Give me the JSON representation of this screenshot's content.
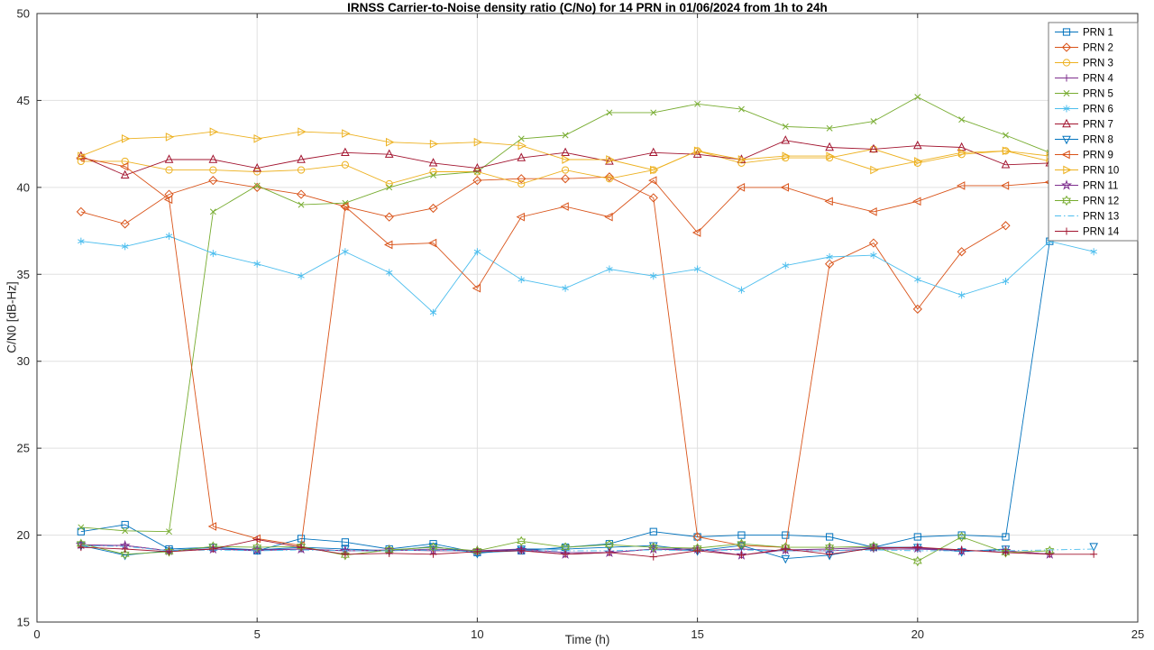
{
  "chart_data": {
    "type": "line",
    "title": "IRNSS Carrier-to-Noise density ratio (C/No) for 14 PRN in 01/06/2024 from 1h to 24h",
    "xlabel": "Time (h)",
    "ylabel": "C/N0 [dB-Hz]",
    "xlim": [
      0,
      25
    ],
    "ylim": [
      15,
      50
    ],
    "xticks": [
      0,
      5,
      10,
      15,
      20,
      25
    ],
    "yticks": [
      15,
      20,
      25,
      30,
      35,
      40,
      45,
      50
    ],
    "grid": true,
    "legend_position": "top-right",
    "grid_color": "#e0e0e0",
    "axis_color": "#333333",
    "tick_label_color": "#262626",
    "x": [
      1,
      2,
      3,
      4,
      5,
      6,
      7,
      8,
      9,
      10,
      11,
      12,
      13,
      14,
      15,
      16,
      17,
      18,
      19,
      20,
      21,
      22,
      23,
      24
    ],
    "series": [
      {
        "name": "PRN 1",
        "color": "#0072BD",
        "marker": "square",
        "linestyle": "solid",
        "values": [
          20.2,
          20.6,
          19.2,
          19.3,
          19.1,
          19.8,
          19.6,
          19.2,
          19.5,
          19.0,
          19.1,
          19.3,
          19.5,
          20.2,
          19.9,
          20.0,
          20.0,
          19.9,
          19.3,
          19.9,
          20.0,
          19.9,
          36.9,
          null
        ]
      },
      {
        "name": "PRN 2",
        "color": "#D95319",
        "marker": "diamond",
        "linestyle": "solid",
        "values": [
          38.6,
          37.9,
          39.6,
          40.4,
          40.0,
          39.6,
          38.9,
          38.3,
          38.8,
          40.4,
          40.5,
          40.5,
          40.6,
          39.4,
          19.9,
          19.4,
          19.3,
          35.6,
          36.8,
          33.0,
          36.3,
          37.8,
          null,
          null
        ]
      },
      {
        "name": "PRN 3",
        "color": "#EDB120",
        "marker": "circle",
        "linestyle": "solid",
        "values": [
          41.5,
          41.5,
          41.0,
          41.0,
          40.9,
          41.0,
          41.3,
          40.2,
          40.9,
          40.9,
          40.2,
          41.0,
          40.5,
          41.0,
          42.1,
          41.4,
          41.7,
          41.7,
          42.2,
          41.4,
          41.9,
          42.1,
          41.5,
          41.8
        ]
      },
      {
        "name": "PRN 4",
        "color": "#7E2F8E",
        "marker": "plus",
        "linestyle": "solid",
        "values": [
          19.4,
          19.4,
          19.1,
          19.2,
          19.1,
          19.2,
          19.1,
          19.1,
          19.2,
          19.1,
          19.2,
          19.0,
          19.0,
          19.2,
          19.1,
          19.2,
          19.1,
          19.1,
          19.2,
          19.2,
          19.1,
          19.1,
          18.9,
          null
        ]
      },
      {
        "name": "PRN 5",
        "color": "#77AC30",
        "marker": "x",
        "linestyle": "solid",
        "values": [
          20.45,
          20.25,
          20.2,
          38.6,
          40.1,
          39.0,
          39.1,
          40.0,
          40.7,
          40.9,
          42.8,
          43.0,
          44.3,
          44.3,
          44.8,
          44.5,
          43.5,
          43.4,
          43.8,
          45.2,
          43.9,
          43.0,
          42.0,
          41.9
        ]
      },
      {
        "name": "PRN 6",
        "color": "#4DBEEE",
        "marker": "asterisk",
        "linestyle": "solid",
        "values": [
          36.9,
          36.6,
          37.2,
          36.2,
          35.6,
          34.9,
          36.3,
          35.1,
          32.8,
          36.3,
          34.7,
          34.2,
          35.3,
          34.9,
          35.3,
          34.1,
          35.5,
          36.0,
          36.1,
          34.7,
          33.8,
          34.6,
          36.9,
          36.3
        ]
      },
      {
        "name": "PRN 7",
        "color": "#A2142F",
        "marker": "triangle-up",
        "linestyle": "solid",
        "values": [
          41.8,
          40.7,
          41.6,
          41.6,
          41.1,
          41.6,
          42.0,
          41.9,
          41.4,
          41.1,
          41.7,
          42.0,
          41.5,
          42.0,
          41.9,
          41.6,
          42.7,
          42.3,
          42.2,
          42.4,
          42.3,
          41.3,
          41.4,
          null
        ]
      },
      {
        "name": "PRN 8",
        "color": "#0072BD",
        "marker": "triangle-down",
        "linestyle": "solid",
        "values": [
          19.4,
          18.85,
          19.1,
          19.3,
          19.15,
          19.3,
          19.2,
          19.1,
          19.35,
          18.95,
          19.2,
          19.2,
          19.3,
          19.4,
          19.1,
          19.4,
          18.65,
          18.85,
          19.3,
          19.3,
          19.05,
          19.2,
          null,
          19.35
        ]
      },
      {
        "name": "PRN 9",
        "color": "#D95319",
        "marker": "triangle-left",
        "linestyle": "solid",
        "values": [
          41.7,
          41.2,
          39.3,
          20.5,
          19.8,
          19.4,
          38.9,
          36.7,
          36.8,
          34.2,
          38.3,
          38.9,
          38.3,
          40.4,
          37.4,
          40.0,
          40.0,
          39.2,
          38.6,
          39.2,
          40.1,
          40.1,
          40.3,
          null
        ]
      },
      {
        "name": "PRN 10",
        "color": "#EDB120",
        "marker": "triangle-right",
        "linestyle": "solid",
        "values": [
          41.8,
          42.8,
          42.9,
          43.2,
          42.8,
          43.2,
          43.1,
          42.6,
          42.5,
          42.6,
          42.4,
          41.6,
          41.6,
          41.0,
          42.1,
          41.6,
          41.8,
          41.8,
          41.0,
          41.5,
          42.0,
          42.1,
          41.8,
          41.8
        ]
      },
      {
        "name": "PRN 11",
        "color": "#7E2F8E",
        "marker": "pentagram",
        "linestyle": "solid",
        "values": [
          19.45,
          19.4,
          19.1,
          19.2,
          19.15,
          19.2,
          19.1,
          19.15,
          19.1,
          19.1,
          19.15,
          18.9,
          19.0,
          19.2,
          19.2,
          18.85,
          19.15,
          19.2,
          19.3,
          19.25,
          19.1,
          19.1,
          18.9,
          null
        ]
      },
      {
        "name": "PRN 12",
        "color": "#77AC30",
        "marker": "hexagram",
        "linestyle": "solid",
        "values": [
          19.5,
          18.9,
          19.05,
          19.35,
          19.3,
          19.35,
          18.85,
          19.15,
          19.3,
          19.1,
          19.65,
          19.3,
          19.45,
          19.3,
          19.25,
          19.5,
          19.3,
          19.3,
          19.35,
          18.5,
          19.9,
          19.0,
          19.1,
          null
        ]
      },
      {
        "name": "PRN 13",
        "color": "#4DBEEE",
        "marker": "none",
        "linestyle": "dashdot",
        "values": [
          19.4,
          19.35,
          19.1,
          19.15,
          19.1,
          19.15,
          19.1,
          19.1,
          19.15,
          19.05,
          19.1,
          19.1,
          19.1,
          19.15,
          19.1,
          19.15,
          19.1,
          19.1,
          19.15,
          19.1,
          19.1,
          19.1,
          19.15,
          19.2
        ]
      },
      {
        "name": "PRN 14",
        "color": "#A2142F",
        "marker": "plus",
        "linestyle": "solid",
        "values": [
          19.3,
          19.2,
          19.05,
          19.2,
          19.75,
          19.3,
          18.9,
          18.95,
          18.9,
          19.05,
          19.1,
          18.9,
          19.0,
          18.75,
          19.1,
          18.85,
          19.2,
          18.9,
          19.25,
          19.3,
          19.15,
          19.0,
          18.9,
          18.9
        ]
      }
    ]
  }
}
